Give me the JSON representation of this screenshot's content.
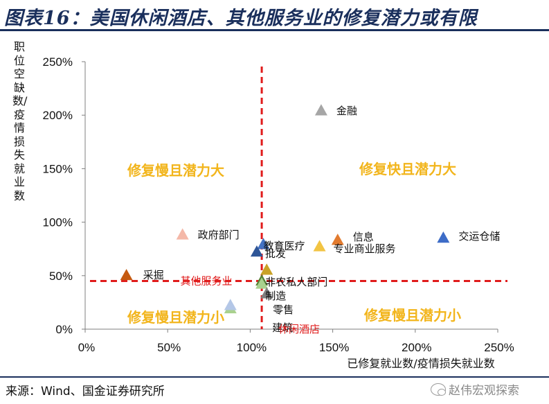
{
  "figure_title": "图表16：美国休闲酒店、其他服务业的修复潜力或有限",
  "source_text": "来源：Wind、国金证券研究所",
  "watermark_text": "赵伟宏观探索",
  "chart_data": {
    "type": "scatter",
    "xlabel": "已修复就业数/疫情损失就业数",
    "ylabel": "职位空缺数/疫情损失就业数",
    "xlim": [
      0,
      250
    ],
    "ylim": [
      0,
      250
    ],
    "x_ticks": [
      "0%",
      "50%",
      "100%",
      "150%",
      "200%",
      "250%"
    ],
    "y_ticks": [
      "0%",
      "50%",
      "100%",
      "150%",
      "200%",
      "250%"
    ],
    "grid": false,
    "reference_lines": {
      "vertical_x": 107,
      "horizontal_y": 45,
      "horizontal_label": "其他服务业",
      "vertical_label": "休闲酒店",
      "color": "#e01b1b"
    },
    "quadrant_labels": {
      "top_left": "修复慢且潜力大",
      "top_right": "修复快且潜力大",
      "bottom_left": "修复慢且潜力小",
      "bottom_right": "修复慢且潜力小"
    },
    "points": [
      {
        "label": "金融",
        "x": 143,
        "y": 204,
        "color": "#a6a6a6"
      },
      {
        "label": "政府部门",
        "x": 59,
        "y": 88,
        "color": "#f4b8a8"
      },
      {
        "label": "交运仓储",
        "x": 217,
        "y": 85,
        "color": "#3d6cc7"
      },
      {
        "label": "信息",
        "x": 153,
        "y": 83,
        "color": "#e27b2f"
      },
      {
        "label": "专业商业服务",
        "x": 142,
        "y": 77,
        "color": "#f2c443"
      },
      {
        "label": "教育医疗",
        "x": 108,
        "y": 79,
        "color": "#4472c4"
      },
      {
        "label": "批发",
        "x": 104,
        "y": 72,
        "color": "#2e5597"
      },
      {
        "label": "非农私人部门",
        "x": 110,
        "y": 55,
        "color": "#c9a227"
      },
      {
        "label": "制造",
        "x": 110,
        "y": 55,
        "color": "#c9a227"
      },
      {
        "label": "采掘",
        "x": 25,
        "y": 50,
        "color": "#c55a11"
      },
      {
        "label": "其他服务业",
        "x": 107,
        "y": 45,
        "color": "#548235"
      },
      {
        "label": "零售",
        "x": 107,
        "y": 42,
        "color": "#a9d18e"
      },
      {
        "label": "建筑",
        "x": 110,
        "y": 33,
        "color": "#7f7f7f"
      },
      {
        "label": "休闲酒店",
        "x": 88,
        "y": 19,
        "color": "#a9d18e"
      },
      {
        "label": "",
        "x": 88,
        "y": 22,
        "color": "#b4c7e7"
      }
    ]
  }
}
